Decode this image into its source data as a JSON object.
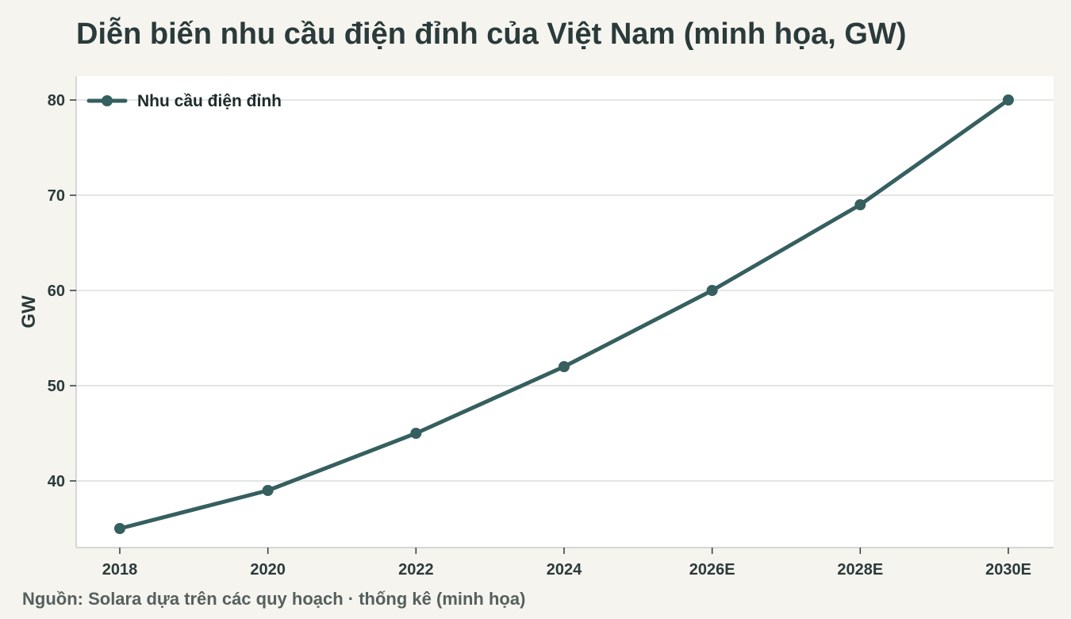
{
  "title": "Diễn biến nhu cầu điện đỉnh của Việt Nam (minh họa, GW)",
  "source": "Nguồn: Solara dựa trên các quy hoạch · thống kê (minh họa)",
  "chart_data": {
    "type": "line",
    "title": "Diễn biến nhu cầu điện đỉnh của Việt Nam (minh họa, GW)",
    "xlabel": "",
    "ylabel": "GW",
    "categories": [
      "2018",
      "2020",
      "2022",
      "2024",
      "2026E",
      "2028E",
      "2030E"
    ],
    "series": [
      {
        "name": "Nhu cầu điện đỉnh",
        "values": [
          35,
          39,
          45,
          52,
          60,
          69,
          80
        ],
        "color": "#365f5f"
      }
    ],
    "yticks": [
      40,
      50,
      60,
      70,
      80
    ],
    "ylim": [
      33,
      82.5
    ],
    "grid": true,
    "legend_position": "top-left"
  }
}
